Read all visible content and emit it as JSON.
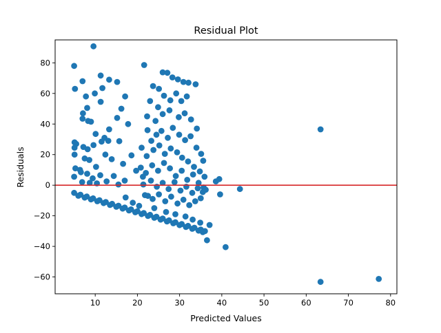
{
  "chart_data": {
    "type": "scatter",
    "title": "Residual Plot",
    "xlabel": "Predicted Values",
    "ylabel": "Residuals",
    "xlim": [
      0.5,
      81.5
    ],
    "ylim": [
      -71,
      95
    ],
    "xticks": [
      10,
      20,
      30,
      40,
      50,
      60,
      70,
      80
    ],
    "yticks": [
      -60,
      -40,
      -20,
      0,
      20,
      40,
      60,
      80
    ],
    "grid": false,
    "reference_line": {
      "y": 0,
      "color": "#d62728"
    },
    "marker_color": "#1f77b4",
    "points": [
      [
        9.6,
        90.8
      ],
      [
        5.0,
        78.0
      ],
      [
        21.6,
        78.6
      ],
      [
        5.2,
        63.0
      ],
      [
        7.0,
        68.0
      ],
      [
        11.3,
        71.7
      ],
      [
        13.3,
        69.0
      ],
      [
        15.2,
        67.5
      ],
      [
        11.7,
        63.5
      ],
      [
        9.9,
        60.0
      ],
      [
        7.8,
        58.0
      ],
      [
        17.1,
        58.0
      ],
      [
        11.3,
        54.5
      ],
      [
        8.1,
        50.5
      ],
      [
        16.2,
        50.0
      ],
      [
        7.1,
        47.0
      ],
      [
        7.0,
        43.5
      ],
      [
        8.3,
        42.0
      ],
      [
        9.0,
        41.5
      ],
      [
        15.2,
        44.0
      ],
      [
        17.8,
        40.0
      ],
      [
        13.3,
        36.5
      ],
      [
        10.1,
        33.5
      ],
      [
        12.2,
        31.0
      ],
      [
        5.1,
        28.0
      ],
      [
        5.5,
        27.0
      ],
      [
        5.1,
        24.5
      ],
      [
        7.2,
        25.0
      ],
      [
        8.2,
        23.5
      ],
      [
        9.6,
        26.2
      ],
      [
        11.5,
        28.5
      ],
      [
        13.1,
        29.0
      ],
      [
        15.7,
        28.8
      ],
      [
        5.1,
        20.0
      ],
      [
        5.3,
        11.0
      ],
      [
        6.4,
        10.0
      ],
      [
        7.5,
        17.5
      ],
      [
        8.6,
        16.5
      ],
      [
        10.2,
        12.0
      ],
      [
        12.4,
        20.0
      ],
      [
        13.9,
        17.0
      ],
      [
        16.6,
        14.0
      ],
      [
        18.6,
        19.5
      ],
      [
        5.0,
        5.5
      ],
      [
        6.6,
        8.5
      ],
      [
        8.1,
        7.5
      ],
      [
        9.4,
        4.5
      ],
      [
        11.2,
        6.5
      ],
      [
        12.7,
        2.5
      ],
      [
        14.4,
        6.0
      ],
      [
        17.0,
        3.0
      ],
      [
        19.7,
        9.5
      ],
      [
        6.9,
        2.0
      ],
      [
        8.7,
        1.5
      ],
      [
        10.4,
        1.2
      ],
      [
        15.5,
        0.5
      ],
      [
        21.3,
        5.5
      ],
      [
        17.2,
        -8.0
      ],
      [
        18.9,
        -11.5
      ],
      [
        20.4,
        -13.5
      ],
      [
        22.5,
        -7.0
      ],
      [
        23.7,
        64.8
      ],
      [
        25.1,
        63.0
      ],
      [
        26.0,
        73.8
      ],
      [
        27.1,
        73.5
      ],
      [
        28.3,
        70.5
      ],
      [
        29.6,
        69.2
      ],
      [
        30.9,
        67.5
      ],
      [
        32.1,
        67.0
      ],
      [
        33.8,
        66.0
      ],
      [
        23.0,
        55.0
      ],
      [
        24.9,
        51.0
      ],
      [
        26.3,
        58.5
      ],
      [
        27.8,
        55.5
      ],
      [
        29.2,
        60.0
      ],
      [
        30.4,
        55.0
      ],
      [
        31.7,
        58.0
      ],
      [
        22.3,
        45.0
      ],
      [
        24.3,
        42.0
      ],
      [
        26.0,
        46.5
      ],
      [
        27.6,
        49.0
      ],
      [
        29.8,
        44.5
      ],
      [
        31.2,
        47.0
      ],
      [
        32.7,
        43.0
      ],
      [
        34.1,
        37.0
      ],
      [
        22.4,
        36.0
      ],
      [
        23.3,
        29.0
      ],
      [
        24.5,
        33.0
      ],
      [
        25.7,
        35.5
      ],
      [
        27.2,
        31.0
      ],
      [
        28.4,
        37.5
      ],
      [
        29.9,
        33.0
      ],
      [
        31.3,
        29.5
      ],
      [
        32.6,
        32.0
      ],
      [
        34.0,
        24.5
      ],
      [
        35.1,
        20.5
      ],
      [
        35.6,
        16.0
      ],
      [
        21.0,
        24.5
      ],
      [
        22.2,
        19.0
      ],
      [
        23.8,
        23.0
      ],
      [
        25.2,
        26.0
      ],
      [
        26.5,
        20.5
      ],
      [
        27.9,
        24.0
      ],
      [
        29.4,
        21.5
      ],
      [
        30.6,
        18.0
      ],
      [
        32.0,
        15.5
      ],
      [
        33.4,
        12.0
      ],
      [
        34.8,
        9.0
      ],
      [
        35.9,
        5.5
      ],
      [
        20.8,
        11.5
      ],
      [
        22.0,
        8.0
      ],
      [
        23.5,
        13.0
      ],
      [
        24.9,
        9.5
      ],
      [
        26.3,
        14.5
      ],
      [
        27.7,
        11.0
      ],
      [
        29.1,
        6.0
      ],
      [
        30.5,
        9.5
      ],
      [
        31.8,
        3.5
      ],
      [
        33.2,
        7.0
      ],
      [
        34.5,
        1.5
      ],
      [
        35.7,
        -1.5
      ],
      [
        21.4,
        0.5
      ],
      [
        23.2,
        3.0
      ],
      [
        24.6,
        -1.0
      ],
      [
        26.0,
        1.5
      ],
      [
        27.4,
        -2.5
      ],
      [
        28.8,
        2.0
      ],
      [
        30.2,
        -3.5
      ],
      [
        31.6,
        -1.0
      ],
      [
        33.0,
        -5.0
      ],
      [
        34.3,
        -2.0
      ],
      [
        35.5,
        -4.5
      ],
      [
        21.8,
        -6.5
      ],
      [
        23.6,
        -9.0
      ],
      [
        25.1,
        -6.0
      ],
      [
        26.6,
        -10.5
      ],
      [
        28.0,
        -7.5
      ],
      [
        29.5,
        -12.0
      ],
      [
        30.9,
        -9.5
      ],
      [
        32.3,
        -13.0
      ],
      [
        33.7,
        -10.5
      ],
      [
        35.0,
        -8.5
      ],
      [
        36.2,
        -3.0
      ],
      [
        24.0,
        -15.0
      ],
      [
        26.8,
        -17.5
      ],
      [
        29.0,
        -19.0
      ],
      [
        31.4,
        -20.5
      ],
      [
        33.1,
        -22.5
      ],
      [
        34.9,
        -24.5
      ],
      [
        37.1,
        -26.0
      ],
      [
        38.6,
        2.5
      ],
      [
        39.4,
        4.0
      ],
      [
        39.6,
        -6.0
      ],
      [
        44.3,
        -2.5
      ],
      [
        63.4,
        36.5
      ],
      [
        40.9,
        -40.5
      ],
      [
        36.5,
        -36.0
      ],
      [
        63.4,
        -63.2
      ],
      [
        77.2,
        -61.3
      ],
      [
        5.0,
        -5.0
      ],
      [
        6.5,
        -6.2
      ],
      [
        8.0,
        -7.4
      ],
      [
        9.5,
        -8.6
      ],
      [
        11.0,
        -9.8
      ],
      [
        12.5,
        -11.0
      ],
      [
        14.0,
        -12.2
      ],
      [
        15.5,
        -13.4
      ],
      [
        17.0,
        -14.6
      ],
      [
        18.5,
        -15.8
      ],
      [
        20.0,
        -17.0
      ],
      [
        21.5,
        -18.2
      ],
      [
        23.0,
        -19.4
      ],
      [
        24.5,
        -20.6
      ],
      [
        26.0,
        -21.8
      ],
      [
        27.5,
        -23.0
      ],
      [
        29.0,
        -24.2
      ],
      [
        30.5,
        -25.4
      ],
      [
        32.0,
        -26.6
      ],
      [
        33.5,
        -27.8
      ],
      [
        35.0,
        -29.0
      ],
      [
        36.0,
        -30.0
      ],
      [
        6.0,
        -6.9
      ],
      [
        7.5,
        -8.1
      ],
      [
        9.0,
        -9.3
      ],
      [
        10.5,
        -10.5
      ],
      [
        12.0,
        -11.7
      ],
      [
        13.5,
        -12.9
      ],
      [
        15.0,
        -14.1
      ],
      [
        16.5,
        -15.3
      ],
      [
        18.0,
        -16.5
      ],
      [
        19.5,
        -17.7
      ],
      [
        21.0,
        -18.9
      ],
      [
        22.5,
        -20.1
      ],
      [
        24.0,
        -21.3
      ],
      [
        25.5,
        -22.5
      ],
      [
        27.0,
        -23.7
      ],
      [
        28.5,
        -24.9
      ],
      [
        30.0,
        -26.1
      ],
      [
        31.5,
        -27.3
      ],
      [
        33.0,
        -28.5
      ],
      [
        34.5,
        -29.7
      ],
      [
        35.5,
        -30.7
      ]
    ]
  }
}
